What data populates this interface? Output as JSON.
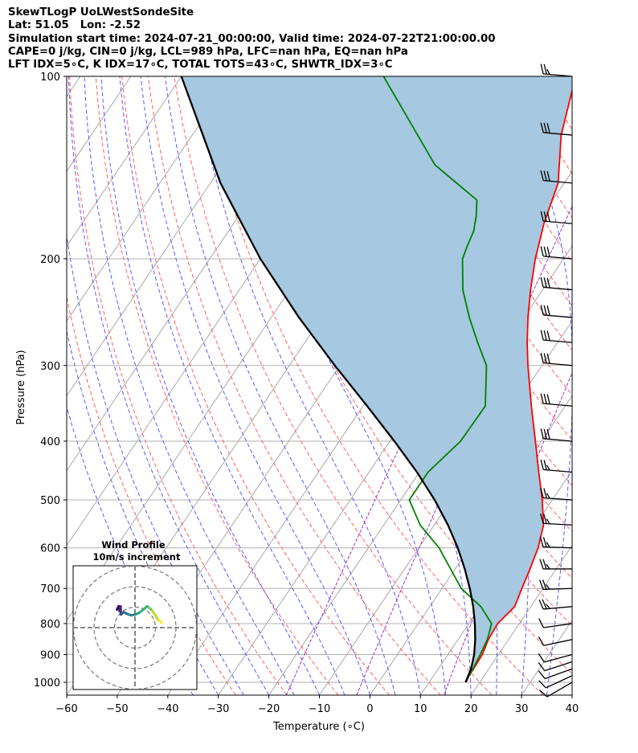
{
  "header": {
    "line1": "SkewTLogP UoLWestSondeSite",
    "line2": "Lat: 51.05   Lon: -2.52",
    "line3": "Simulation start time: 2024-07-21_00:00:00, Valid time: 2024-07-22T21:00:00.00",
    "line4": "CAPE=0 j/kg, CIN=0 j/kg, LCL=989 hPa, LFC=nan hPa, EQ=nan hPa",
    "line5": "LFT IDX=5∘C, K IDX=17∘C, TOTAL TOTS=43∘C, SHWTR_IDX=3∘C"
  },
  "chart_data": {
    "type": "line",
    "subtype": "skew-T log-P diagram",
    "xlabel": "Temperature (∘C)",
    "ylabel": "Pressure (hPa)",
    "xlim": [
      -60,
      40
    ],
    "ylim": [
      1050,
      100
    ],
    "y_scale": "log",
    "x_ticks": [
      "−60",
      "−50",
      "−40",
      "−30",
      "−20",
      "−10",
      "0",
      "10",
      "20",
      "30",
      "40"
    ],
    "y_ticks": [
      1000,
      900,
      800,
      700,
      600,
      500,
      400,
      300,
      200,
      100
    ],
    "grid": true,
    "series": [
      {
        "color": "#ff0000",
        "pressure": [
          1000,
          975,
          950,
          925,
          900,
          850,
          800,
          750,
          700,
          650,
          600,
          550,
          500,
          450,
          400,
          350,
          300,
          275,
          250,
          225,
          200,
          175,
          150,
          125,
          100
        ],
        "values": [
          17.3,
          17.0,
          17.0,
          16.9,
          16.8,
          16.0,
          15.7,
          16.8,
          15.8,
          14.8,
          13.6,
          11.6,
          8.0,
          3.6,
          -1.2,
          -6.7,
          -12.8,
          -16.0,
          -19.2,
          -22.4,
          -25.6,
          -28.6,
          -31.2,
          -37.0,
          -42.0
        ]
      },
      {
        "color": "#008000",
        "pressure": [
          1000,
          975,
          950,
          925,
          900,
          850,
          800,
          750,
          700,
          650,
          600,
          550,
          500,
          450,
          400,
          350,
          300,
          275,
          250,
          225,
          200,
          190,
          180,
          170,
          160,
          140,
          100
        ],
        "values": [
          17.2,
          17.0,
          16.9,
          16.6,
          16.4,
          15.8,
          14.5,
          10.1,
          3.8,
          -0.9,
          -6.0,
          -12.8,
          -18.3,
          -18.3,
          -16.0,
          -15.8,
          -21.0,
          -25.8,
          -30.8,
          -35.8,
          -40.0,
          -40.8,
          -41.5,
          -43.0,
          -45.0,
          -58.0,
          -80.0
        ]
      },
      {
        "color": "#000000",
        "pressure": [
          1000,
          950,
          900,
          850,
          800,
          750,
          700,
          650,
          600,
          550,
          500,
          450,
          400,
          350,
          300,
          250,
          200,
          150,
          100
        ],
        "values": [
          17.2,
          16.5,
          15.2,
          13.4,
          11.2,
          8.6,
          5.5,
          1.9,
          -2.3,
          -7.3,
          -13.3,
          -20.5,
          -29.1,
          -39.2,
          -51.0,
          -64.5,
          -80.0,
          -98.0,
          -120.0
        ]
      }
    ],
    "shaded_region": {
      "color": "#a6c8e0",
      "between": [
        "#000000",
        "#ff0000"
      ]
    },
    "wind_barbs": {
      "pressures": [
        1000,
        975,
        950,
        925,
        900,
        850,
        800,
        750,
        700,
        650,
        600,
        550,
        500,
        450,
        400,
        350,
        300,
        275,
        250,
        225,
        200,
        175,
        150,
        125,
        100
      ],
      "direction_deg": [
        240,
        245,
        250,
        252,
        255,
        258,
        262,
        265,
        268,
        270,
        272,
        273,
        274,
        275,
        275,
        275,
        275,
        275,
        275,
        275,
        275,
        275,
        275,
        275,
        275
      ],
      "speed_kt": [
        10,
        10,
        10,
        10,
        10,
        10,
        10,
        25,
        25,
        25,
        25,
        25,
        25,
        25,
        30,
        30,
        30,
        30,
        30,
        30,
        30,
        30,
        30,
        30,
        25
      ]
    },
    "hodograph": {
      "title": "Wind Profile",
      "subtitle": "10m/s increment",
      "u": [
        13.0,
        12.0,
        11.0,
        10.0,
        8.0,
        6.0,
        4.0,
        2.0,
        0.0,
        -2.0,
        -4.0,
        -5.5,
        -6.8,
        -7.0,
        -7.5,
        -8.0,
        -8.8
      ],
      "v": [
        0.6,
        0.8,
        1.0,
        1.5,
        2.2,
        2.6,
        2.2,
        1.8,
        1.6,
        1.5,
        1.7,
        1.9,
        1.6,
        2.6,
        2.0,
        2.6,
        2.2
      ]
    }
  }
}
